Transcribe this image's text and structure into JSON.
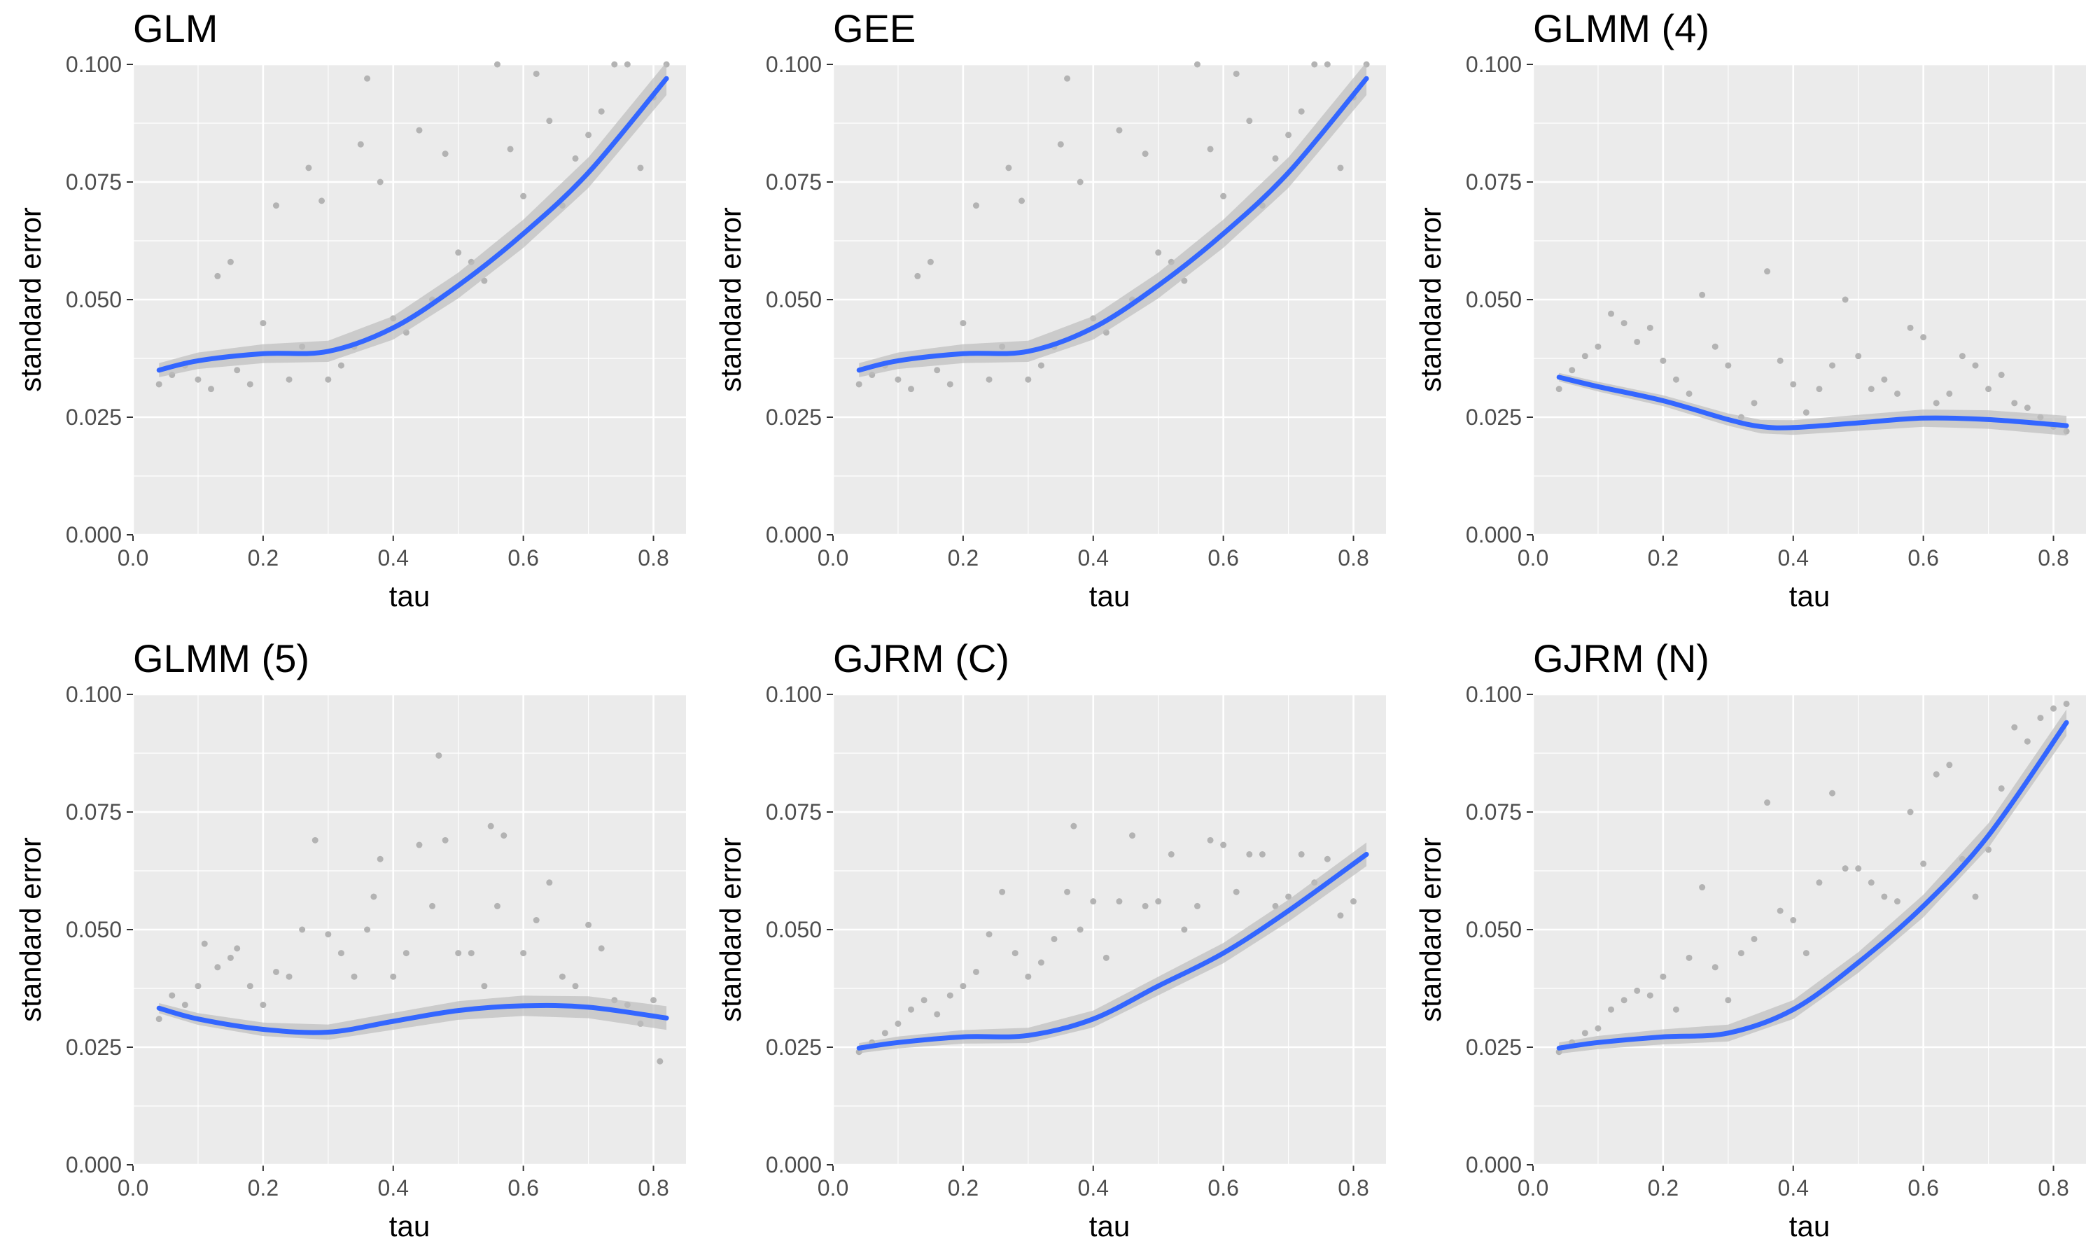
{
  "figure": {
    "background": "#ffffff",
    "panel_background": "#ebebeb",
    "grid_color": "#ffffff",
    "point_color": "#b3b3b3",
    "smooth_color": "#3366ff",
    "ribbon_color": "#bebebe"
  },
  "chart_data": [
    {
      "type": "scatter",
      "title": "GLM",
      "xlabel": "tau",
      "ylabel": "standard error",
      "xlim": [
        0.0,
        0.85
      ],
      "ylim": [
        0.0,
        0.1
      ],
      "xticks": [
        "0.0",
        "0.2",
        "0.4",
        "0.6",
        "0.8"
      ],
      "yticks": [
        "0.000",
        "0.025",
        "0.050",
        "0.075",
        "0.100"
      ],
      "grid": true,
      "smooth": [
        [
          0.04,
          0.035
        ],
        [
          0.1,
          0.037
        ],
        [
          0.2,
          0.0385
        ],
        [
          0.3,
          0.039
        ],
        [
          0.4,
          0.044
        ],
        [
          0.5,
          0.053
        ],
        [
          0.6,
          0.064
        ],
        [
          0.7,
          0.077
        ],
        [
          0.82,
          0.097
        ]
      ],
      "smooth_band": 0.0025,
      "points": [
        [
          0.04,
          0.032
        ],
        [
          0.06,
          0.034
        ],
        [
          0.08,
          0.036
        ],
        [
          0.1,
          0.033
        ],
        [
          0.12,
          0.031
        ],
        [
          0.13,
          0.055
        ],
        [
          0.15,
          0.058
        ],
        [
          0.16,
          0.035
        ],
        [
          0.18,
          0.032
        ],
        [
          0.2,
          0.045
        ],
        [
          0.22,
          0.07
        ],
        [
          0.24,
          0.033
        ],
        [
          0.26,
          0.04
        ],
        [
          0.27,
          0.078
        ],
        [
          0.29,
          0.071
        ],
        [
          0.3,
          0.033
        ],
        [
          0.32,
          0.036
        ],
        [
          0.34,
          0.04
        ],
        [
          0.35,
          0.083
        ],
        [
          0.36,
          0.097
        ],
        [
          0.38,
          0.075
        ],
        [
          0.4,
          0.046
        ],
        [
          0.42,
          0.043
        ],
        [
          0.44,
          0.086
        ],
        [
          0.46,
          0.05
        ],
        [
          0.48,
          0.081
        ],
        [
          0.5,
          0.06
        ],
        [
          0.52,
          0.058
        ],
        [
          0.54,
          0.054
        ],
        [
          0.56,
          0.1
        ],
        [
          0.58,
          0.082
        ],
        [
          0.6,
          0.072
        ],
        [
          0.62,
          0.098
        ],
        [
          0.64,
          0.088
        ],
        [
          0.66,
          0.07
        ],
        [
          0.68,
          0.08
        ],
        [
          0.7,
          0.085
        ],
        [
          0.72,
          0.09
        ],
        [
          0.74,
          0.1
        ],
        [
          0.76,
          0.1
        ],
        [
          0.78,
          0.078
        ],
        [
          0.8,
          0.093
        ],
        [
          0.82,
          0.1
        ]
      ]
    },
    {
      "type": "scatter",
      "title": "GEE",
      "xlabel": "tau",
      "ylabel": "standard error",
      "xlim": [
        0.0,
        0.85
      ],
      "ylim": [
        0.0,
        0.1
      ],
      "xticks": [
        "0.0",
        "0.2",
        "0.4",
        "0.6",
        "0.8"
      ],
      "yticks": [
        "0.000",
        "0.025",
        "0.050",
        "0.075",
        "0.100"
      ],
      "grid": true,
      "smooth": [
        [
          0.04,
          0.035
        ],
        [
          0.1,
          0.037
        ],
        [
          0.2,
          0.0385
        ],
        [
          0.3,
          0.039
        ],
        [
          0.4,
          0.044
        ],
        [
          0.5,
          0.053
        ],
        [
          0.6,
          0.064
        ],
        [
          0.7,
          0.077
        ],
        [
          0.82,
          0.097
        ]
      ],
      "smooth_band": 0.0025,
      "points": [
        [
          0.04,
          0.032
        ],
        [
          0.06,
          0.034
        ],
        [
          0.08,
          0.036
        ],
        [
          0.1,
          0.033
        ],
        [
          0.12,
          0.031
        ],
        [
          0.13,
          0.055
        ],
        [
          0.15,
          0.058
        ],
        [
          0.16,
          0.035
        ],
        [
          0.18,
          0.032
        ],
        [
          0.2,
          0.045
        ],
        [
          0.22,
          0.07
        ],
        [
          0.24,
          0.033
        ],
        [
          0.26,
          0.04
        ],
        [
          0.27,
          0.078
        ],
        [
          0.29,
          0.071
        ],
        [
          0.3,
          0.033
        ],
        [
          0.32,
          0.036
        ],
        [
          0.34,
          0.04
        ],
        [
          0.35,
          0.083
        ],
        [
          0.36,
          0.097
        ],
        [
          0.38,
          0.075
        ],
        [
          0.4,
          0.046
        ],
        [
          0.42,
          0.043
        ],
        [
          0.44,
          0.086
        ],
        [
          0.46,
          0.05
        ],
        [
          0.48,
          0.081
        ],
        [
          0.5,
          0.06
        ],
        [
          0.52,
          0.058
        ],
        [
          0.54,
          0.054
        ],
        [
          0.56,
          0.1
        ],
        [
          0.58,
          0.082
        ],
        [
          0.6,
          0.072
        ],
        [
          0.62,
          0.098
        ],
        [
          0.64,
          0.088
        ],
        [
          0.66,
          0.07
        ],
        [
          0.68,
          0.08
        ],
        [
          0.7,
          0.085
        ],
        [
          0.72,
          0.09
        ],
        [
          0.74,
          0.1
        ],
        [
          0.76,
          0.1
        ],
        [
          0.78,
          0.078
        ],
        [
          0.8,
          0.093
        ],
        [
          0.82,
          0.1
        ]
      ]
    },
    {
      "type": "scatter",
      "title": "GLMM (4)",
      "xlabel": "tau",
      "ylabel": "standard error",
      "xlim": [
        0.0,
        0.85
      ],
      "ylim": [
        0.0,
        0.1
      ],
      "xticks": [
        "0.0",
        "0.2",
        "0.4",
        "0.6",
        "0.8"
      ],
      "yticks": [
        "0.000",
        "0.025",
        "0.050",
        "0.075",
        "0.100"
      ],
      "grid": true,
      "smooth": [
        [
          0.04,
          0.0335
        ],
        [
          0.1,
          0.0315
        ],
        [
          0.2,
          0.0285
        ],
        [
          0.3,
          0.0245
        ],
        [
          0.35,
          0.023
        ],
        [
          0.4,
          0.0228
        ],
        [
          0.5,
          0.0238
        ],
        [
          0.6,
          0.0248
        ],
        [
          0.7,
          0.0245
        ],
        [
          0.82,
          0.0232
        ]
      ],
      "smooth_band": 0.0015,
      "points": [
        [
          0.04,
          0.031
        ],
        [
          0.06,
          0.035
        ],
        [
          0.08,
          0.038
        ],
        [
          0.1,
          0.04
        ],
        [
          0.12,
          0.047
        ],
        [
          0.14,
          0.045
        ],
        [
          0.16,
          0.041
        ],
        [
          0.18,
          0.044
        ],
        [
          0.2,
          0.037
        ],
        [
          0.22,
          0.033
        ],
        [
          0.24,
          0.03
        ],
        [
          0.26,
          0.051
        ],
        [
          0.28,
          0.04
        ],
        [
          0.3,
          0.036
        ],
        [
          0.32,
          0.025
        ],
        [
          0.34,
          0.028
        ],
        [
          0.36,
          0.056
        ],
        [
          0.38,
          0.037
        ],
        [
          0.4,
          0.032
        ],
        [
          0.42,
          0.026
        ],
        [
          0.44,
          0.031
        ],
        [
          0.46,
          0.036
        ],
        [
          0.48,
          0.05
        ],
        [
          0.5,
          0.038
        ],
        [
          0.52,
          0.031
        ],
        [
          0.54,
          0.033
        ],
        [
          0.56,
          0.03
        ],
        [
          0.58,
          0.044
        ],
        [
          0.6,
          0.042
        ],
        [
          0.62,
          0.028
        ],
        [
          0.64,
          0.03
        ],
        [
          0.66,
          0.038
        ],
        [
          0.68,
          0.036
        ],
        [
          0.7,
          0.031
        ],
        [
          0.72,
          0.034
        ],
        [
          0.74,
          0.028
        ],
        [
          0.76,
          0.027
        ],
        [
          0.78,
          0.025
        ],
        [
          0.8,
          0.023
        ],
        [
          0.82,
          0.022
        ]
      ]
    },
    {
      "type": "scatter",
      "title": "GLMM (5)",
      "xlabel": "tau",
      "ylabel": "standard error",
      "xlim": [
        0.0,
        0.85
      ],
      "ylim": [
        0.0,
        0.1
      ],
      "xticks": [
        "0.0",
        "0.2",
        "0.4",
        "0.6",
        "0.8"
      ],
      "yticks": [
        "0.000",
        "0.025",
        "0.050",
        "0.075",
        "0.100"
      ],
      "grid": true,
      "smooth": [
        [
          0.04,
          0.0333
        ],
        [
          0.1,
          0.031
        ],
        [
          0.2,
          0.0288
        ],
        [
          0.3,
          0.0282
        ],
        [
          0.4,
          0.0305
        ],
        [
          0.5,
          0.0328
        ],
        [
          0.6,
          0.0338
        ],
        [
          0.7,
          0.0335
        ],
        [
          0.82,
          0.0312
        ]
      ],
      "smooth_band": 0.0018,
      "points": [
        [
          0.04,
          0.031
        ],
        [
          0.06,
          0.036
        ],
        [
          0.08,
          0.034
        ],
        [
          0.1,
          0.038
        ],
        [
          0.11,
          0.047
        ],
        [
          0.13,
          0.042
        ],
        [
          0.15,
          0.044
        ],
        [
          0.16,
          0.046
        ],
        [
          0.18,
          0.038
        ],
        [
          0.2,
          0.034
        ],
        [
          0.22,
          0.041
        ],
        [
          0.24,
          0.04
        ],
        [
          0.26,
          0.05
        ],
        [
          0.28,
          0.069
        ],
        [
          0.3,
          0.049
        ],
        [
          0.32,
          0.045
        ],
        [
          0.34,
          0.04
        ],
        [
          0.36,
          0.05
        ],
        [
          0.37,
          0.057
        ],
        [
          0.38,
          0.065
        ],
        [
          0.4,
          0.04
        ],
        [
          0.42,
          0.045
        ],
        [
          0.44,
          0.068
        ],
        [
          0.46,
          0.055
        ],
        [
          0.47,
          0.087
        ],
        [
          0.48,
          0.069
        ],
        [
          0.5,
          0.045
        ],
        [
          0.52,
          0.045
        ],
        [
          0.54,
          0.038
        ],
        [
          0.55,
          0.072
        ],
        [
          0.56,
          0.055
        ],
        [
          0.57,
          0.07
        ],
        [
          0.6,
          0.045
        ],
        [
          0.62,
          0.052
        ],
        [
          0.64,
          0.06
        ],
        [
          0.66,
          0.04
        ],
        [
          0.68,
          0.038
        ],
        [
          0.7,
          0.051
        ],
        [
          0.72,
          0.046
        ],
        [
          0.74,
          0.035
        ],
        [
          0.76,
          0.034
        ],
        [
          0.78,
          0.03
        ],
        [
          0.8,
          0.035
        ],
        [
          0.81,
          0.022
        ]
      ]
    },
    {
      "type": "scatter",
      "title": "GJRM (C)",
      "xlabel": "tau",
      "ylabel": "standard error",
      "xlim": [
        0.0,
        0.85
      ],
      "ylim": [
        0.0,
        0.1
      ],
      "xticks": [
        "0.0",
        "0.2",
        "0.4",
        "0.6",
        "0.8"
      ],
      "yticks": [
        "0.000",
        "0.025",
        "0.050",
        "0.075",
        "0.100"
      ],
      "grid": true,
      "smooth": [
        [
          0.04,
          0.0248
        ],
        [
          0.1,
          0.026
        ],
        [
          0.2,
          0.0272
        ],
        [
          0.3,
          0.0275
        ],
        [
          0.4,
          0.031
        ],
        [
          0.5,
          0.038
        ],
        [
          0.6,
          0.045
        ],
        [
          0.7,
          0.054
        ],
        [
          0.82,
          0.066
        ]
      ],
      "smooth_band": 0.0018,
      "points": [
        [
          0.04,
          0.024
        ],
        [
          0.06,
          0.026
        ],
        [
          0.08,
          0.028
        ],
        [
          0.1,
          0.03
        ],
        [
          0.12,
          0.033
        ],
        [
          0.14,
          0.035
        ],
        [
          0.16,
          0.032
        ],
        [
          0.18,
          0.036
        ],
        [
          0.2,
          0.038
        ],
        [
          0.22,
          0.041
        ],
        [
          0.24,
          0.049
        ],
        [
          0.26,
          0.058
        ],
        [
          0.28,
          0.045
        ],
        [
          0.3,
          0.04
        ],
        [
          0.32,
          0.043
        ],
        [
          0.34,
          0.048
        ],
        [
          0.36,
          0.058
        ],
        [
          0.37,
          0.072
        ],
        [
          0.38,
          0.05
        ],
        [
          0.4,
          0.056
        ],
        [
          0.42,
          0.044
        ],
        [
          0.44,
          0.056
        ],
        [
          0.46,
          0.07
        ],
        [
          0.48,
          0.055
        ],
        [
          0.5,
          0.056
        ],
        [
          0.52,
          0.066
        ],
        [
          0.54,
          0.05
        ],
        [
          0.56,
          0.055
        ],
        [
          0.58,
          0.069
        ],
        [
          0.6,
          0.068
        ],
        [
          0.62,
          0.058
        ],
        [
          0.64,
          0.066
        ],
        [
          0.66,
          0.066
        ],
        [
          0.68,
          0.055
        ],
        [
          0.7,
          0.057
        ],
        [
          0.72,
          0.066
        ],
        [
          0.74,
          0.06
        ],
        [
          0.76,
          0.065
        ],
        [
          0.78,
          0.053
        ],
        [
          0.8,
          0.056
        ]
      ]
    },
    {
      "type": "scatter",
      "title": "GJRM (N)",
      "xlabel": "tau",
      "ylabel": "standard error",
      "xlim": [
        0.0,
        0.85
      ],
      "ylim": [
        0.0,
        0.1
      ],
      "xticks": [
        "0.0",
        "0.2",
        "0.4",
        "0.6",
        "0.8"
      ],
      "yticks": [
        "0.000",
        "0.025",
        "0.050",
        "0.075",
        "0.100"
      ],
      "grid": true,
      "smooth": [
        [
          0.04,
          0.0248
        ],
        [
          0.1,
          0.026
        ],
        [
          0.2,
          0.0272
        ],
        [
          0.3,
          0.028
        ],
        [
          0.4,
          0.033
        ],
        [
          0.5,
          0.043
        ],
        [
          0.6,
          0.055
        ],
        [
          0.7,
          0.07
        ],
        [
          0.82,
          0.094
        ]
      ],
      "smooth_band": 0.002,
      "points": [
        [
          0.04,
          0.024
        ],
        [
          0.06,
          0.026
        ],
        [
          0.08,
          0.028
        ],
        [
          0.1,
          0.029
        ],
        [
          0.12,
          0.033
        ],
        [
          0.14,
          0.035
        ],
        [
          0.16,
          0.037
        ],
        [
          0.18,
          0.036
        ],
        [
          0.2,
          0.04
        ],
        [
          0.22,
          0.033
        ],
        [
          0.24,
          0.044
        ],
        [
          0.26,
          0.059
        ],
        [
          0.28,
          0.042
        ],
        [
          0.3,
          0.035
        ],
        [
          0.32,
          0.045
        ],
        [
          0.34,
          0.048
        ],
        [
          0.36,
          0.077
        ],
        [
          0.38,
          0.054
        ],
        [
          0.4,
          0.052
        ],
        [
          0.42,
          0.045
        ],
        [
          0.44,
          0.06
        ],
        [
          0.46,
          0.079
        ],
        [
          0.48,
          0.063
        ],
        [
          0.5,
          0.063
        ],
        [
          0.52,
          0.06
        ],
        [
          0.54,
          0.057
        ],
        [
          0.56,
          0.056
        ],
        [
          0.58,
          0.075
        ],
        [
          0.6,
          0.064
        ],
        [
          0.62,
          0.083
        ],
        [
          0.64,
          0.085
        ],
        [
          0.66,
          0.065
        ],
        [
          0.68,
          0.057
        ],
        [
          0.7,
          0.067
        ],
        [
          0.72,
          0.08
        ],
        [
          0.74,
          0.093
        ],
        [
          0.76,
          0.09
        ],
        [
          0.78,
          0.095
        ],
        [
          0.8,
          0.097
        ],
        [
          0.82,
          0.098
        ]
      ]
    }
  ]
}
